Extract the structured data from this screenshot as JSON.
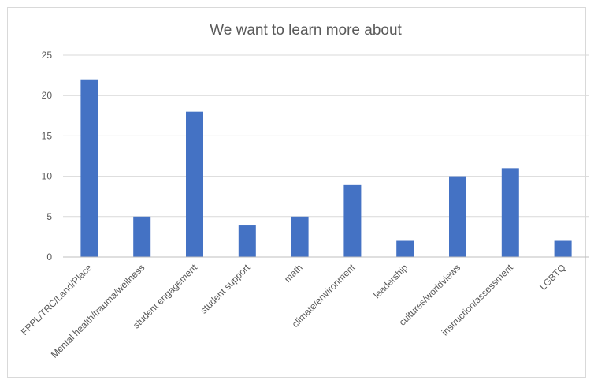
{
  "chart_data": {
    "type": "bar",
    "title": "We want to learn more about",
    "categories": [
      "FPPL/TRC/Land/Place",
      "Mental health/trauma/wellness",
      "student engagement",
      "student support",
      "math",
      "climate/environment",
      "leadership",
      "cultures/worldviews",
      "instruction/assessment",
      "LGBTQ"
    ],
    "values": [
      22,
      5,
      18,
      4,
      5,
      9,
      2,
      10,
      11,
      2
    ],
    "yticks": [
      0,
      5,
      10,
      15,
      20,
      25
    ],
    "ylim": [
      0,
      25
    ],
    "xlabel": "",
    "ylabel": "",
    "grid": true,
    "legend": "none",
    "bar_color": "#4472C4"
  }
}
